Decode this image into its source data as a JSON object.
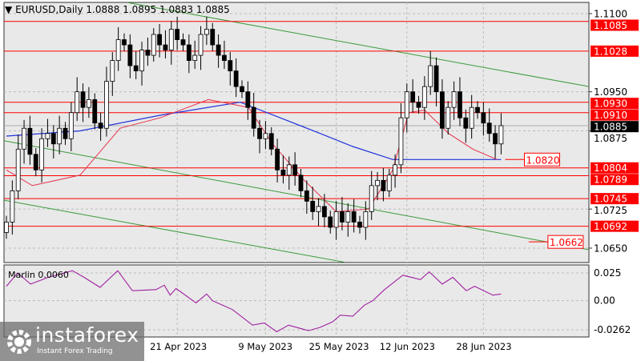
{
  "header": {
    "symbol": "EURUSD,Daily",
    "ohlc": "1.0888 1.0895 1.0883 1.0885"
  },
  "colors": {
    "background": "#e9e9e9",
    "level": "#ff0000",
    "channel": "#3a9a3a",
    "ma_fast": "#e8304a",
    "ma_slow": "#2233dd",
    "indicator": "#a020a0"
  },
  "chart_data": {
    "type": "candlestick",
    "price_axis": {
      "ylim": [
        1.0625,
        1.1108
      ],
      "ticks": [
        "1.1100",
        "1.0950",
        "1.0875",
        "1.0725",
        "1.0650"
      ]
    },
    "x_ticks": [
      {
        "label": "21 Apr 2023",
        "index": 29
      },
      {
        "label": "9 May 2023",
        "index": 44
      },
      {
        "label": "25 May 2023",
        "index": 56
      },
      {
        "label": "12 Jun 2023",
        "index": 68
      },
      {
        "label": "28 Jun 2023",
        "index": 81
      }
    ],
    "closes": [
      1.07,
      1.076,
      1.084,
      1.088,
      1.083,
      1.08,
      1.086,
      1.087,
      1.085,
      1.088,
      1.086,
      1.091,
      1.095,
      1.092,
      1.0935,
      1.089,
      1.088,
      1.097,
      1.101,
      1.105,
      1.104,
      1.1,
      1.099,
      1.103,
      1.102,
      1.106,
      1.104,
      1.103,
      1.107,
      1.105,
      1.104,
      1.101,
      1.102,
      1.106,
      1.107,
      1.104,
      1.102,
      1.101,
      1.099,
      1.096,
      1.095,
      1.092,
      1.088,
      1.086,
      1.087,
      1.084,
      1.08,
      1.079,
      1.081,
      1.079,
      1.076,
      1.074,
      1.072,
      1.073,
      1.071,
      1.069,
      1.072,
      1.07,
      1.072,
      1.07,
      1.069,
      1.072,
      1.077,
      1.078,
      1.076,
      1.079,
      1.081,
      1.09,
      1.095,
      1.093,
      1.092,
      1.096,
      1.1,
      1.095,
      1.088,
      1.092,
      1.095,
      1.09,
      1.088,
      1.092,
      1.091,
      1.089,
      1.087,
      1.085,
      1.0885
    ],
    "current_price": "1.0885",
    "levels": [
      "1.1085",
      "1.1028",
      "1.0930",
      "1.0910",
      "1.0804",
      "1.0789",
      "1.0745",
      "1.0692"
    ],
    "boxed_labels": [
      {
        "label": "1.0820",
        "index": 88.5,
        "price": 1.082
      },
      {
        "label": "1.0662",
        "index": 92.5,
        "price": 1.0662
      }
    ],
    "ma_fast": [
      [
        0,
        1.08
      ],
      [
        4.4,
        1.077
      ],
      [
        12.5,
        1.079
      ],
      [
        19.3,
        1.088
      ],
      [
        26.1,
        1.09
      ],
      [
        34.3,
        1.0935
      ],
      [
        41.1,
        1.092
      ],
      [
        45.2,
        1.085
      ],
      [
        50.6,
        1.078
      ],
      [
        56,
        1.072
      ],
      [
        61.5,
        1.0725
      ],
      [
        65.6,
        1.08
      ],
      [
        68.3,
        1.091
      ],
      [
        71,
        1.0915
      ],
      [
        75.1,
        1.087
      ],
      [
        79.2,
        1.084
      ],
      [
        83.3,
        1.082
      ]
    ],
    "ma_slow": [
      [
        0,
        1.0865
      ],
      [
        12.5,
        1.0875
      ],
      [
        26.1,
        1.0905
      ],
      [
        39.7,
        1.093
      ],
      [
        46.5,
        1.09
      ],
      [
        53.3,
        1.087
      ],
      [
        58.8,
        1.0845
      ],
      [
        65.6,
        1.082
      ],
      [
        84,
        1.082
      ]
    ],
    "channels": [
      [
        [
          20.7,
          1.1121
        ],
        [
          98.9,
          1.096
        ]
      ],
      [
        [
          -0.4,
          1.0856
        ],
        [
          98.9,
          1.0647
        ]
      ],
      [
        [
          -0.4,
          1.0742
        ],
        [
          57.4,
          1.0623
        ]
      ]
    ],
    "indicator": {
      "name": "Marlin 0.0060",
      "ticks": [
        "0.025",
        "0.00",
        "-0.0262"
      ],
      "ylim": [
        -0.0285,
        0.03
      ],
      "points": [
        [
          0,
          0.013
        ],
        [
          1.9,
          0.025
        ],
        [
          4.1,
          0.015
        ],
        [
          7.1,
          0.021
        ],
        [
          11.2,
          0.027
        ],
        [
          13.2,
          0.021
        ],
        [
          15.9,
          0.012
        ],
        [
          18.9,
          0.027
        ],
        [
          21.4,
          0.009
        ],
        [
          25.4,
          0.01
        ],
        [
          26.8,
          0.014
        ],
        [
          27.8,
          0.005
        ],
        [
          28.8,
          0.011
        ],
        [
          32.2,
          -0.002
        ],
        [
          34,
          0.006
        ],
        [
          35,
          0.0
        ],
        [
          38.4,
          -0.008
        ],
        [
          41.8,
          -0.022
        ],
        [
          43.8,
          -0.02
        ],
        [
          45.9,
          -0.028
        ],
        [
          47.9,
          -0.022
        ],
        [
          51.3,
          -0.027
        ],
        [
          53.3,
          -0.024
        ],
        [
          55.4,
          -0.019
        ],
        [
          56.7,
          -0.013
        ],
        [
          58.8,
          -0.014
        ],
        [
          60.8,
          -0.004
        ],
        [
          62.2,
          0.0
        ],
        [
          64.2,
          0.01
        ],
        [
          67.3,
          0.023
        ],
        [
          70.3,
          0.019
        ],
        [
          71.8,
          0.026
        ],
        [
          74,
          0.015
        ],
        [
          75.8,
          0.021
        ],
        [
          78.1,
          0.009
        ],
        [
          79.5,
          0.013
        ],
        [
          82.6,
          0.005
        ],
        [
          84,
          0.006
        ]
      ]
    }
  },
  "watermark": {
    "brand": "instaforex",
    "tagline": "Instant Forex Trading"
  }
}
